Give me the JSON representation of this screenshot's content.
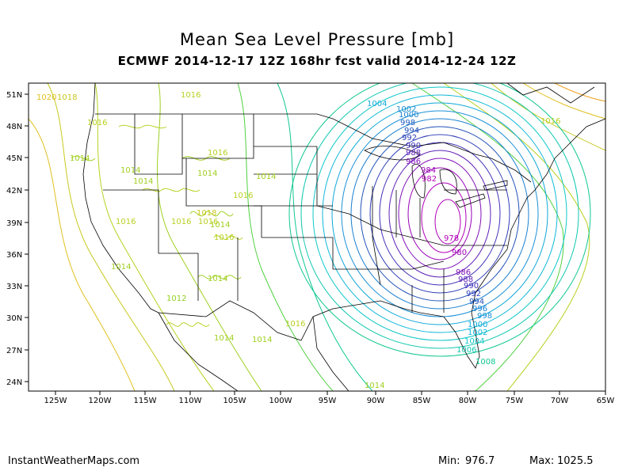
{
  "title": "Mean Sea Level Pressure [mb]",
  "subtitle": "ECMWF 2014-12-17 12Z 168hr fcst valid 2014-12-24 12Z",
  "footer": {
    "credit": "InstantWeatherMaps.com",
    "min_label": "Min:",
    "min_value": "976.7",
    "max_label": "Max:",
    "max_value": "1025.5"
  },
  "axes": {
    "lat_ticks": [
      "51N",
      "48N",
      "45N",
      "42N",
      "39N",
      "36N",
      "33N",
      "30N",
      "27N",
      "24N"
    ],
    "lon_ticks": [
      "125W",
      "120W",
      "115W",
      "110W",
      "105W",
      "100W",
      "95W",
      "90W",
      "85W",
      "80W",
      "75W",
      "70W",
      "65W"
    ]
  },
  "colors": {
    "c976": "#9b00b5",
    "c980": "#8a1ab0",
    "c984": "#6a3cc8",
    "c988": "#3c50c8",
    "c992": "#2060c0",
    "c996": "#1a80d0",
    "c1000": "#10a8d8",
    "c1004": "#10c8c8",
    "c1008": "#10c890",
    "c1012": "#50d040",
    "c1016": "#a0d820",
    "c1020": "#e0c020",
    "c1024": "#f0a020"
  },
  "contour_labels": [
    {
      "text": "1004",
      "color": "#10a8d8"
    },
    {
      "text": "1002",
      "color": "#1a8cd0"
    },
    {
      "text": "1000",
      "color": "#1a80d0"
    },
    {
      "text": "998",
      "color": "#2060c0"
    },
    {
      "text": "994",
      "color": "#2050b8"
    },
    {
      "text": "992",
      "color": "#3040b8"
    },
    {
      "text": "990",
      "color": "#4030b8"
    },
    {
      "text": "988",
      "color": "#6020b8"
    },
    {
      "text": "986",
      "color": "#8010b8"
    },
    {
      "text": "984",
      "color": "#9a00b8"
    },
    {
      "text": "982",
      "color": "#b000b8"
    },
    {
      "text": "978",
      "color": "#b000b8"
    },
    {
      "text": "980",
      "color": "#a000b8"
    },
    {
      "text": "986",
      "color": "#8010b8"
    },
    {
      "text": "988",
      "color": "#6020b8"
    },
    {
      "text": "990",
      "color": "#4030b8"
    },
    {
      "text": "992",
      "color": "#3040b8"
    },
    {
      "text": "994",
      "color": "#2050b8"
    },
    {
      "text": "996",
      "color": "#1a80d0"
    },
    {
      "text": "998",
      "color": "#1a90d8"
    },
    {
      "text": "1000",
      "color": "#10a8d8"
    },
    {
      "text": "1002",
      "color": "#10b8d8"
    },
    {
      "text": "1004",
      "color": "#10c8c8"
    },
    {
      "text": "1006",
      "color": "#10c8b0"
    },
    {
      "text": "1008",
      "color": "#10c890"
    },
    {
      "text": "1012",
      "color": "#90d020"
    },
    {
      "text": "1014",
      "color": "#a0d020"
    },
    {
      "text": "1014",
      "color": "#a0d020"
    },
    {
      "text": "1014",
      "color": "#a0d020"
    },
    {
      "text": "1014",
      "color": "#a0d020"
    },
    {
      "text": "1014",
      "color": "#a0d020"
    },
    {
      "text": "1014",
      "color": "#a0d020"
    },
    {
      "text": "1014",
      "color": "#a0d020"
    },
    {
      "text": "1014",
      "color": "#a0d020"
    },
    {
      "text": "1014",
      "color": "#a0d020"
    },
    {
      "text": "1014",
      "color": "#a0d020"
    },
    {
      "text": "1014",
      "color": "#a0d020"
    },
    {
      "text": "1016",
      "color": "#b8d020"
    },
    {
      "text": "1016",
      "color": "#b8d020"
    },
    {
      "text": "1016",
      "color": "#b8d020"
    },
    {
      "text": "1016",
      "color": "#b8d020"
    },
    {
      "text": "1016",
      "color": "#b8d020"
    },
    {
      "text": "1016",
      "color": "#b8d020"
    },
    {
      "text": "1016",
      "color": "#b8d020"
    },
    {
      "text": "1016",
      "color": "#b8d020"
    },
    {
      "text": "1016",
      "color": "#b8d020"
    },
    {
      "text": "1016",
      "color": "#b8d020"
    },
    {
      "text": "1018",
      "color": "#c8c820"
    },
    {
      "text": "1018",
      "color": "#c8c820"
    },
    {
      "text": "1020",
      "color": "#e0c020"
    }
  ]
}
